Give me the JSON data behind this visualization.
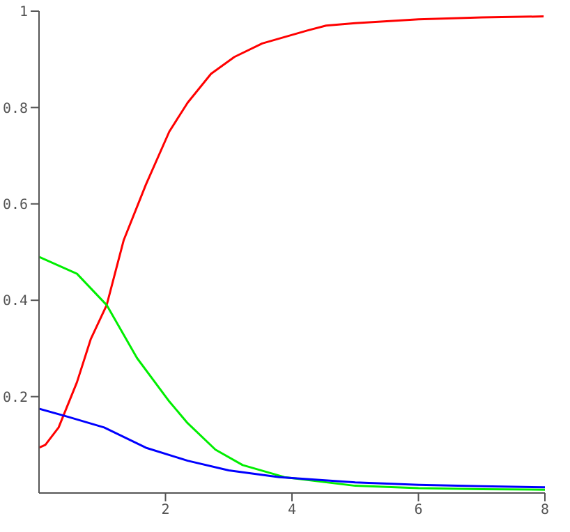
{
  "chart_data": {
    "type": "line",
    "xlim": [
      0,
      8
    ],
    "xticks": [
      2,
      4,
      6,
      8
    ],
    "ylim": [
      0,
      1
    ],
    "yticks": [
      0.2,
      0.4,
      0.6,
      0.8,
      1
    ],
    "grid": false,
    "legend": false,
    "marker": "none",
    "line_style": "solid",
    "series": [
      {
        "color": "#ff0000",
        "x": [
          0,
          0.1,
          0.31,
          0.6,
          0.82,
          1.07,
          1.34,
          1.69,
          2.06,
          2.35,
          2.72,
          3.09,
          3.53,
          4.25,
          4.54,
          5,
          6,
          7,
          7.98
        ],
        "values": [
          0.094,
          0.1,
          0.136,
          0.23,
          0.32,
          0.39,
          0.525,
          0.64,
          0.75,
          0.81,
          0.87,
          0.905,
          0.933,
          0.96,
          0.97,
          0.975,
          0.983,
          0.987,
          0.989
        ]
      },
      {
        "color": "#00ee00",
        "x": [
          0,
          0.6,
          1.07,
          1.55,
          2.06,
          2.35,
          2.79,
          3.22,
          3.88,
          5,
          6,
          7,
          8
        ],
        "values": [
          0.49,
          0.455,
          0.39,
          0.28,
          0.19,
          0.145,
          0.09,
          0.058,
          0.033,
          0.015,
          0.01,
          0.008,
          0.007
        ]
      },
      {
        "color": "#0000ff",
        "x": [
          0,
          0.46,
          1.03,
          1.69,
          2.35,
          3,
          3.8,
          5,
          6,
          7,
          8
        ],
        "values": [
          0.175,
          0.158,
          0.136,
          0.094,
          0.067,
          0.047,
          0.033,
          0.022,
          0.017,
          0.014,
          0.012
        ]
      }
    ]
  }
}
